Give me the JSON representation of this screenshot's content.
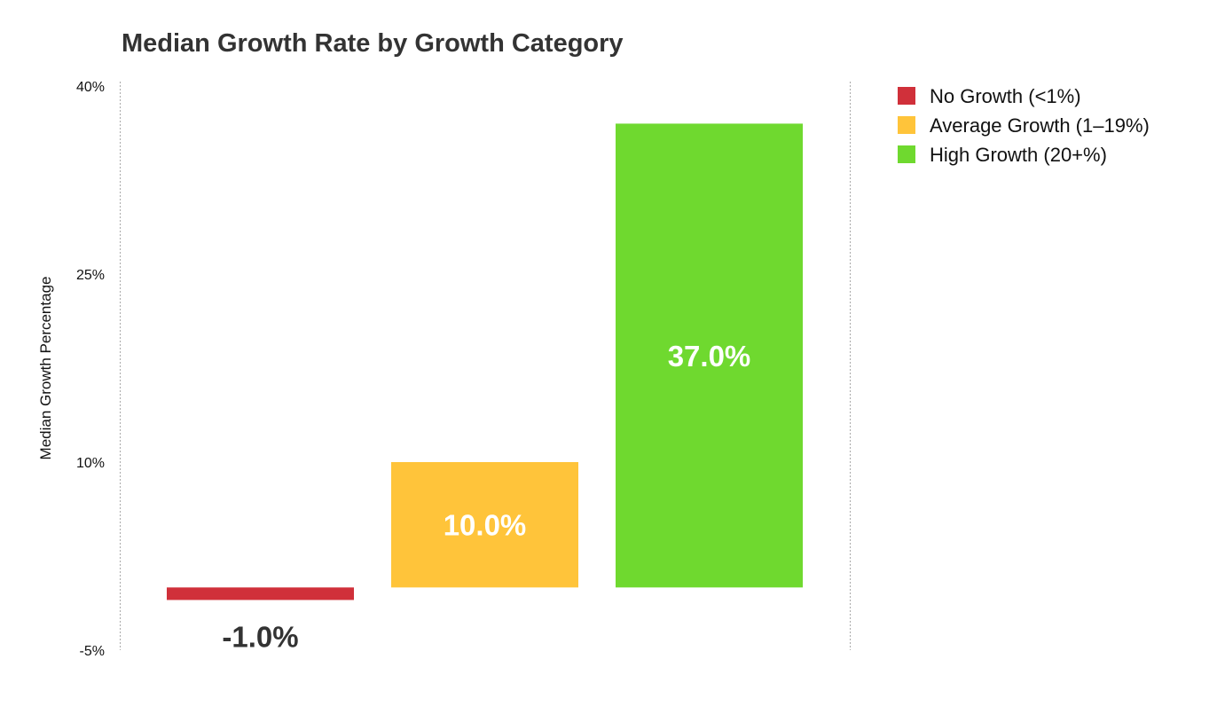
{
  "chart_data": {
    "type": "bar",
    "title": "Median Growth Rate by Growth Category",
    "xlabel": "",
    "ylabel": "Median Growth Percentage",
    "ylim": [
      -5,
      40
    ],
    "yticks": [
      -5,
      10,
      25,
      40
    ],
    "ytick_labels": [
      "-5%",
      "10%",
      "25%",
      "40%"
    ],
    "categories": [
      "No Growth (<1%)",
      "Average Growth (1–19%)",
      "High Growth (20+%)"
    ],
    "values": [
      -1.0,
      10.0,
      37.0
    ],
    "data_labels": [
      "-1.0%",
      "10.0%",
      "37.0%"
    ],
    "colors": [
      "#d0303a",
      "#ffc43a",
      "#6fd92f"
    ],
    "legend": {
      "placement": "top-right",
      "entries": [
        "No Growth (<1%)",
        "Average Growth (1–19%)",
        "High Growth (20+%)"
      ]
    },
    "grid": false
  }
}
